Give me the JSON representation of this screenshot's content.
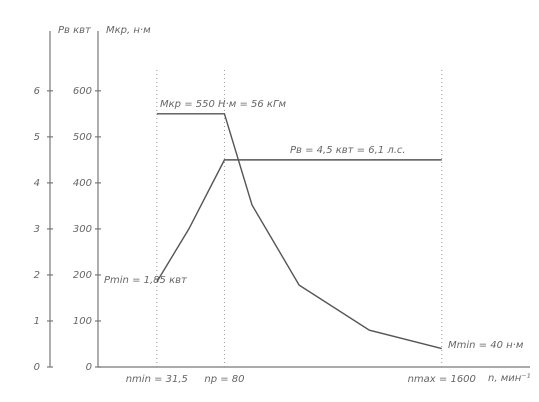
{
  "chart_data": {
    "type": "line",
    "y_label": "Mкр, н·м",
    "y2_label": "Pв квт",
    "x_label": "n, мин⁻¹",
    "x_scale": "log",
    "xlim": [
      14,
      5400
    ],
    "xticks": [
      {
        "value": 31.5,
        "label": "nmin = 31,5"
      },
      {
        "value": 80,
        "label": "nр = 80"
      },
      {
        "value": 1600,
        "label": "nmax = 1600"
      }
    ],
    "ylim": [
      0,
      730
    ],
    "yticks": [
      0,
      100,
      200,
      300,
      400,
      500,
      600
    ],
    "y2lim": [
      0,
      7.3
    ],
    "y2ticks": [
      0,
      1,
      2,
      3,
      4,
      5,
      6
    ],
    "grid": false,
    "series": [
      {
        "name": "Mкр",
        "color": "#555555",
        "x": [
          31.5,
          80,
          117,
          224,
          590,
          1600
        ],
        "values": [
          550,
          550,
          352,
          178,
          80,
          40
        ]
      },
      {
        "name": "Pв",
        "color": "#555555",
        "axis": "y2",
        "x": [
          31.5,
          49,
          80,
          1600
        ],
        "values": [
          1.85,
          3,
          4.5,
          4.5
        ]
      }
    ],
    "annotations": [
      "Mкр = 550 Н·м = 56 кГм",
      "Pв = 4,5 квт = 6,1 л.с.",
      "Pmin = 1,85 квт",
      "Mmin = 40 н·м"
    ]
  }
}
